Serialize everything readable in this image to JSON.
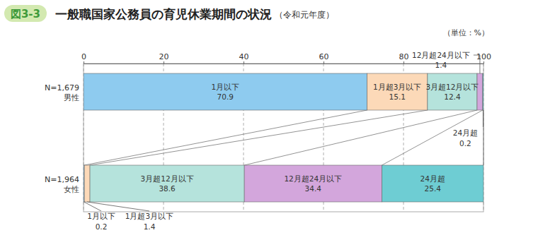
{
  "chart_data": {
    "type": "bar",
    "orientation": "horizontal",
    "stacked": true,
    "data_labels": true,
    "grid": true,
    "figure_label": "図3-3",
    "title": "一般職国家公務員の育児休業期間の状況",
    "subtitle": "（令和元年度）",
    "unit_label": "（単位：%）",
    "categories": [
      "男性",
      "女性"
    ],
    "sample_sizes": [
      "N=1,679",
      "N=1,964"
    ],
    "xlim": [
      0,
      100
    ],
    "xticks": [
      0,
      20,
      40,
      60,
      80,
      100
    ],
    "series": [
      {
        "name": "1月以下",
        "color": "#8ecbef",
        "values": [
          70.9,
          0.2
        ]
      },
      {
        "name": "1月超3月以下",
        "color": "#fcd9b8",
        "values": [
          15.1,
          1.4
        ]
      },
      {
        "name": "3月超12月以下",
        "color": "#b5e3dc",
        "values": [
          12.4,
          38.6
        ]
      },
      {
        "name": "12月超24月以下",
        "color": "#d3a6dc",
        "values": [
          1.4,
          34.4
        ]
      },
      {
        "name": "24月超",
        "color": "#6ecdd3",
        "values": [
          0.2,
          25.4
        ]
      }
    ]
  }
}
